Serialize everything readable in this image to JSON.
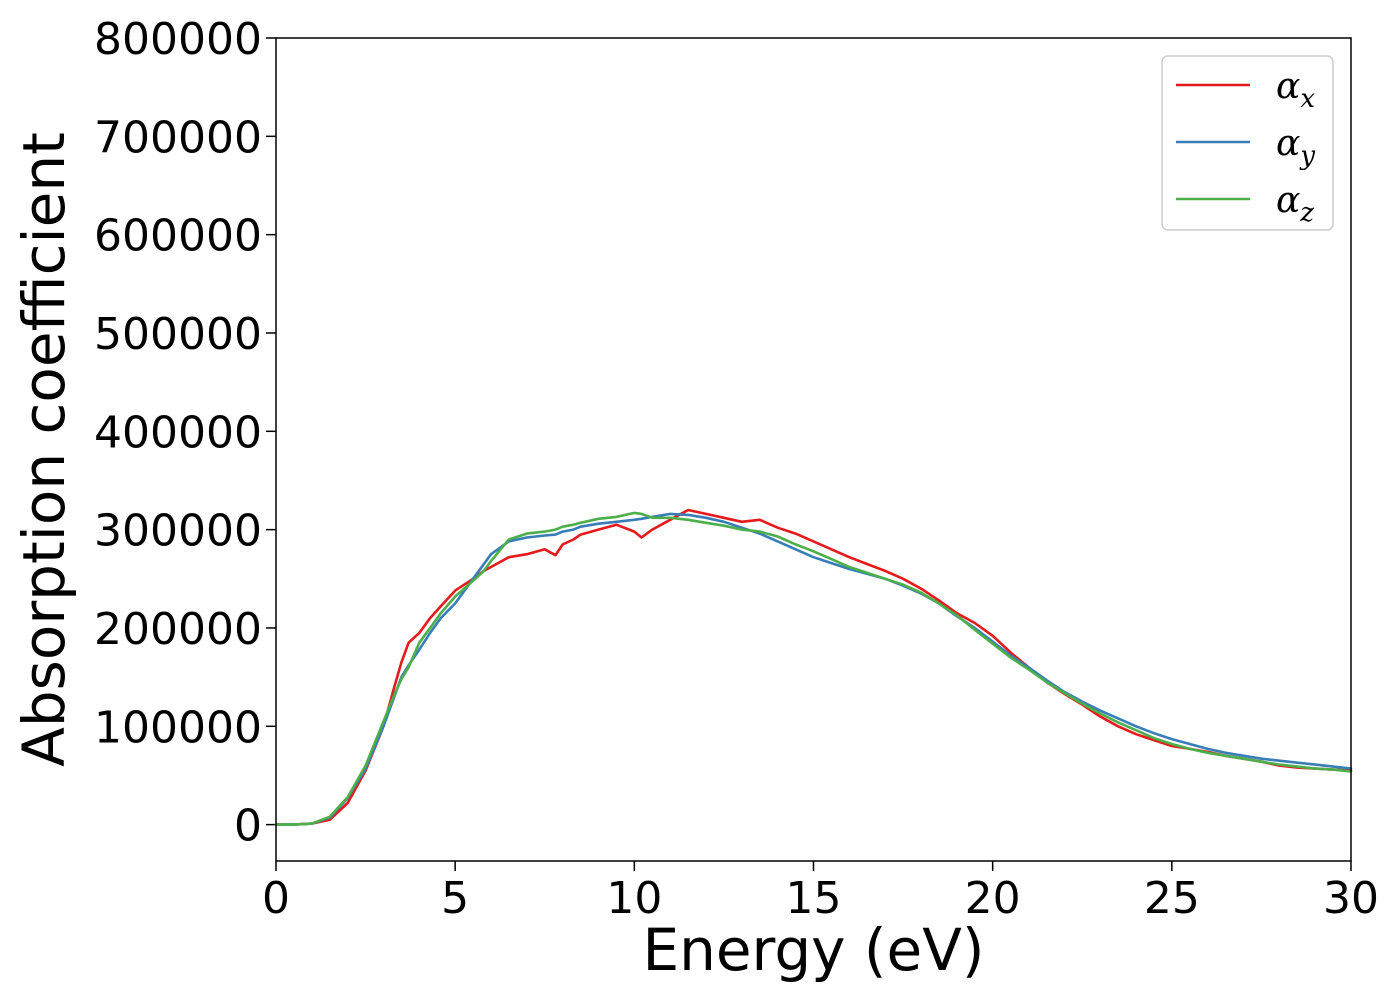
{
  "chart_data": {
    "type": "line",
    "title": "",
    "xlabel": "Energy (eV)",
    "ylabel": "Absorption coefficient",
    "xlim": [
      0,
      30
    ],
    "ylim": [
      -37000,
      800000
    ],
    "xticks": [
      0,
      5,
      10,
      15,
      20,
      25,
      30
    ],
    "xtick_labels": [
      "0",
      "5",
      "10",
      "15",
      "20",
      "25",
      "30"
    ],
    "yticks": [
      0,
      100000,
      200000,
      300000,
      400000,
      500000,
      600000,
      700000,
      800000
    ],
    "ytick_labels": [
      "0",
      "100000",
      "200000",
      "300000",
      "400000",
      "500000",
      "600000",
      "700000",
      "800000"
    ],
    "grid": false,
    "legend_position": "top-right",
    "series": [
      {
        "name": "α_x",
        "symbol": "α",
        "subscript": "x",
        "color": "#e41a1c",
        "x": [
          0,
          0.5,
          1.0,
          1.5,
          2.0,
          2.5,
          3.0,
          3.3,
          3.5,
          3.7,
          4.0,
          4.3,
          4.6,
          5.0,
          5.5,
          5.8,
          6.0,
          6.5,
          7.0,
          7.5,
          7.8,
          8.0,
          8.3,
          8.5,
          9.0,
          9.5,
          10.0,
          10.2,
          10.5,
          11.0,
          11.5,
          12.0,
          12.5,
          13.0,
          13.5,
          14.0,
          14.5,
          15.0,
          15.5,
          16.0,
          16.5,
          17.0,
          17.5,
          18.0,
          18.5,
          19.0,
          19.5,
          20.0,
          20.5,
          21.0,
          21.5,
          22.0,
          22.5,
          23.0,
          23.5,
          24.0,
          24.5,
          25.0,
          25.5,
          26.0,
          26.5,
          27.0,
          27.5,
          28.0,
          28.5,
          29.0,
          29.5,
          30.0
        ],
        "values": [
          0,
          0,
          1000,
          5000,
          22000,
          55000,
          100000,
          140000,
          165000,
          185000,
          195000,
          210000,
          222000,
          238000,
          250000,
          258000,
          262000,
          272000,
          275000,
          280000,
          274000,
          285000,
          290000,
          295000,
          300000,
          305000,
          298000,
          292000,
          300000,
          310000,
          320000,
          316000,
          312000,
          308000,
          310000,
          302000,
          296000,
          288000,
          280000,
          272000,
          265000,
          258000,
          250000,
          240000,
          228000,
          215000,
          205000,
          192000,
          175000,
          160000,
          145000,
          133000,
          122000,
          110000,
          100000,
          92000,
          86000,
          80000,
          77000,
          74000,
          70000,
          67000,
          64000,
          60000,
          58000,
          57000,
          56000,
          55000
        ]
      },
      {
        "name": "α_y",
        "symbol": "α",
        "subscript": "y",
        "color": "#377eb8",
        "x": [
          0,
          0.5,
          1.0,
          1.5,
          2.0,
          2.5,
          3.0,
          3.3,
          3.5,
          3.7,
          4.0,
          4.3,
          4.6,
          5.0,
          5.5,
          5.8,
          6.0,
          6.5,
          7.0,
          7.5,
          7.8,
          8.0,
          8.3,
          8.5,
          9.0,
          9.5,
          10.0,
          10.2,
          10.5,
          11.0,
          11.5,
          12.0,
          12.5,
          13.0,
          13.5,
          14.0,
          14.5,
          15.0,
          15.5,
          16.0,
          16.5,
          17.0,
          17.5,
          18.0,
          18.5,
          19.0,
          19.5,
          20.0,
          20.5,
          21.0,
          21.5,
          22.0,
          22.5,
          23.0,
          23.5,
          24.0,
          24.5,
          25.0,
          25.5,
          26.0,
          26.5,
          27.0,
          27.5,
          28.0,
          28.5,
          29.0,
          29.5,
          30.0
        ],
        "values": [
          0,
          0,
          1000,
          7000,
          27000,
          57000,
          100000,
          130000,
          150000,
          162000,
          178000,
          195000,
          210000,
          225000,
          250000,
          265000,
          275000,
          288000,
          292000,
          294000,
          295000,
          298000,
          300000,
          303000,
          306000,
          308000,
          310000,
          311000,
          313000,
          316000,
          315000,
          312000,
          308000,
          302000,
          296000,
          288000,
          280000,
          272000,
          266000,
          260000,
          255000,
          250000,
          243000,
          235000,
          225000,
          212000,
          200000,
          186000,
          172000,
          160000,
          147000,
          135000,
          125000,
          116000,
          108000,
          100000,
          93000,
          87000,
          82000,
          77000,
          73000,
          70000,
          67000,
          65000,
          63000,
          61000,
          59000,
          57000
        ]
      },
      {
        "name": "α_z",
        "symbol": "α",
        "subscript": "z",
        "color": "#4daf4a",
        "x": [
          0,
          0.5,
          1.0,
          1.5,
          2.0,
          2.5,
          3.0,
          3.3,
          3.5,
          3.7,
          4.0,
          4.3,
          4.6,
          5.0,
          5.5,
          5.8,
          6.0,
          6.5,
          7.0,
          7.5,
          7.8,
          8.0,
          8.3,
          8.5,
          9.0,
          9.5,
          10.0,
          10.2,
          10.5,
          11.0,
          11.5,
          12.0,
          12.5,
          13.0,
          13.5,
          14.0,
          14.5,
          15.0,
          15.5,
          16.0,
          16.5,
          17.0,
          17.5,
          18.0,
          18.5,
          19.0,
          19.5,
          20.0,
          20.5,
          21.0,
          21.5,
          22.0,
          22.5,
          23.0,
          23.5,
          24.0,
          24.5,
          25.0,
          25.5,
          26.0,
          26.5,
          27.0,
          27.5,
          28.0,
          28.5,
          29.0,
          29.5,
          30.0
        ],
        "values": [
          0,
          0,
          1000,
          8000,
          28000,
          60000,
          105000,
          132000,
          148000,
          160000,
          185000,
          200000,
          215000,
          232000,
          248000,
          258000,
          268000,
          290000,
          296000,
          298000,
          300000,
          303000,
          305000,
          307000,
          311000,
          313000,
          317000,
          316000,
          312000,
          312000,
          310000,
          307000,
          304000,
          300000,
          298000,
          293000,
          285000,
          278000,
          270000,
          262000,
          256000,
          250000,
          244000,
          236000,
          225000,
          213000,
          198000,
          184000,
          170000,
          158000,
          145000,
          134000,
          123000,
          113000,
          104000,
          96000,
          88000,
          82000,
          77000,
          73000,
          70000,
          67000,
          64000,
          61000,
          59000,
          57000,
          56000,
          54000
        ]
      }
    ]
  }
}
